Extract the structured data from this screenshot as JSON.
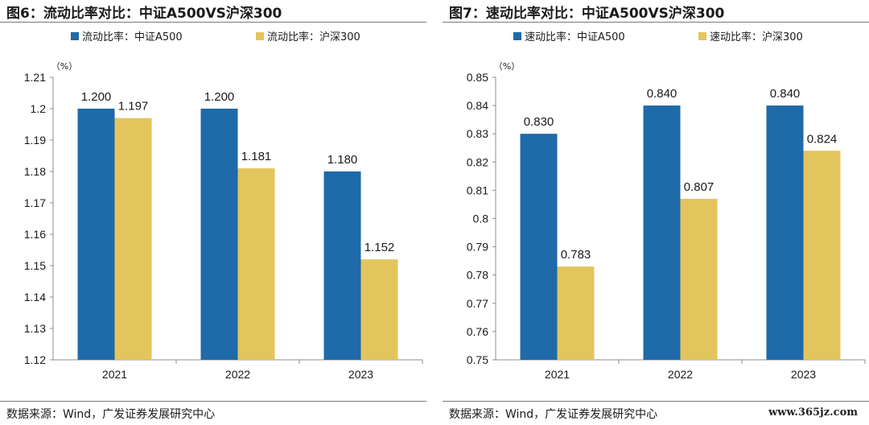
{
  "colors": {
    "blue": "#1f6aa8",
    "gold": "#e3c55d",
    "axis": "#8c8c8c",
    "text": "#1a1a1a"
  },
  "watermark": "www.365jz.com",
  "panels": [
    {
      "title": "图6：流动比率对比：中证A500VS沪深300",
      "source": "数据来源：Wind，广发证券发展研究中心",
      "chart_data": {
        "type": "bar",
        "unit": "（%）",
        "categories": [
          "2021",
          "2022",
          "2023"
        ],
        "series": [
          {
            "name": "流动比率：中证A500",
            "values": [
              1.2,
              1.2,
              1.18
            ],
            "labels": [
              "1.200",
              "1.200",
              "1.180"
            ],
            "color": "#1f6aa8"
          },
          {
            "name": "流动比率：沪深300",
            "values": [
              1.197,
              1.181,
              1.152
            ],
            "labels": [
              "1.197",
              "1.181",
              "1.152"
            ],
            "color": "#e3c55d"
          }
        ],
        "ylim": [
          1.12,
          1.21
        ],
        "yticks": [
          "1.12",
          "1.13",
          "1.14",
          "1.15",
          "1.16",
          "1.17",
          "1.18",
          "1.19",
          "1.2",
          "1.21"
        ],
        "grid": false,
        "legend": "top"
      }
    },
    {
      "title": "图7：速动比率对比：中证A500VS沪深300",
      "source": "数据来源：Wind，广发证券发展研究中心",
      "chart_data": {
        "type": "bar",
        "unit": "（%）",
        "categories": [
          "2021",
          "2022",
          "2023"
        ],
        "series": [
          {
            "name": "速动比率：中证A500",
            "values": [
              0.83,
              0.84,
              0.84
            ],
            "labels": [
              "0.830",
              "0.840",
              "0.840"
            ],
            "color": "#1f6aa8"
          },
          {
            "name": "速动比率：沪深300",
            "values": [
              0.783,
              0.807,
              0.824
            ],
            "labels": [
              "0.783",
              "0.807",
              "0.824"
            ],
            "color": "#e3c55d"
          }
        ],
        "ylim": [
          0.75,
          0.85
        ],
        "yticks": [
          "0.75",
          "0.76",
          "0.77",
          "0.78",
          "0.79",
          "0.8",
          "0.81",
          "0.82",
          "0.83",
          "0.84",
          "0.85"
        ],
        "grid": false,
        "legend": "top"
      }
    }
  ]
}
